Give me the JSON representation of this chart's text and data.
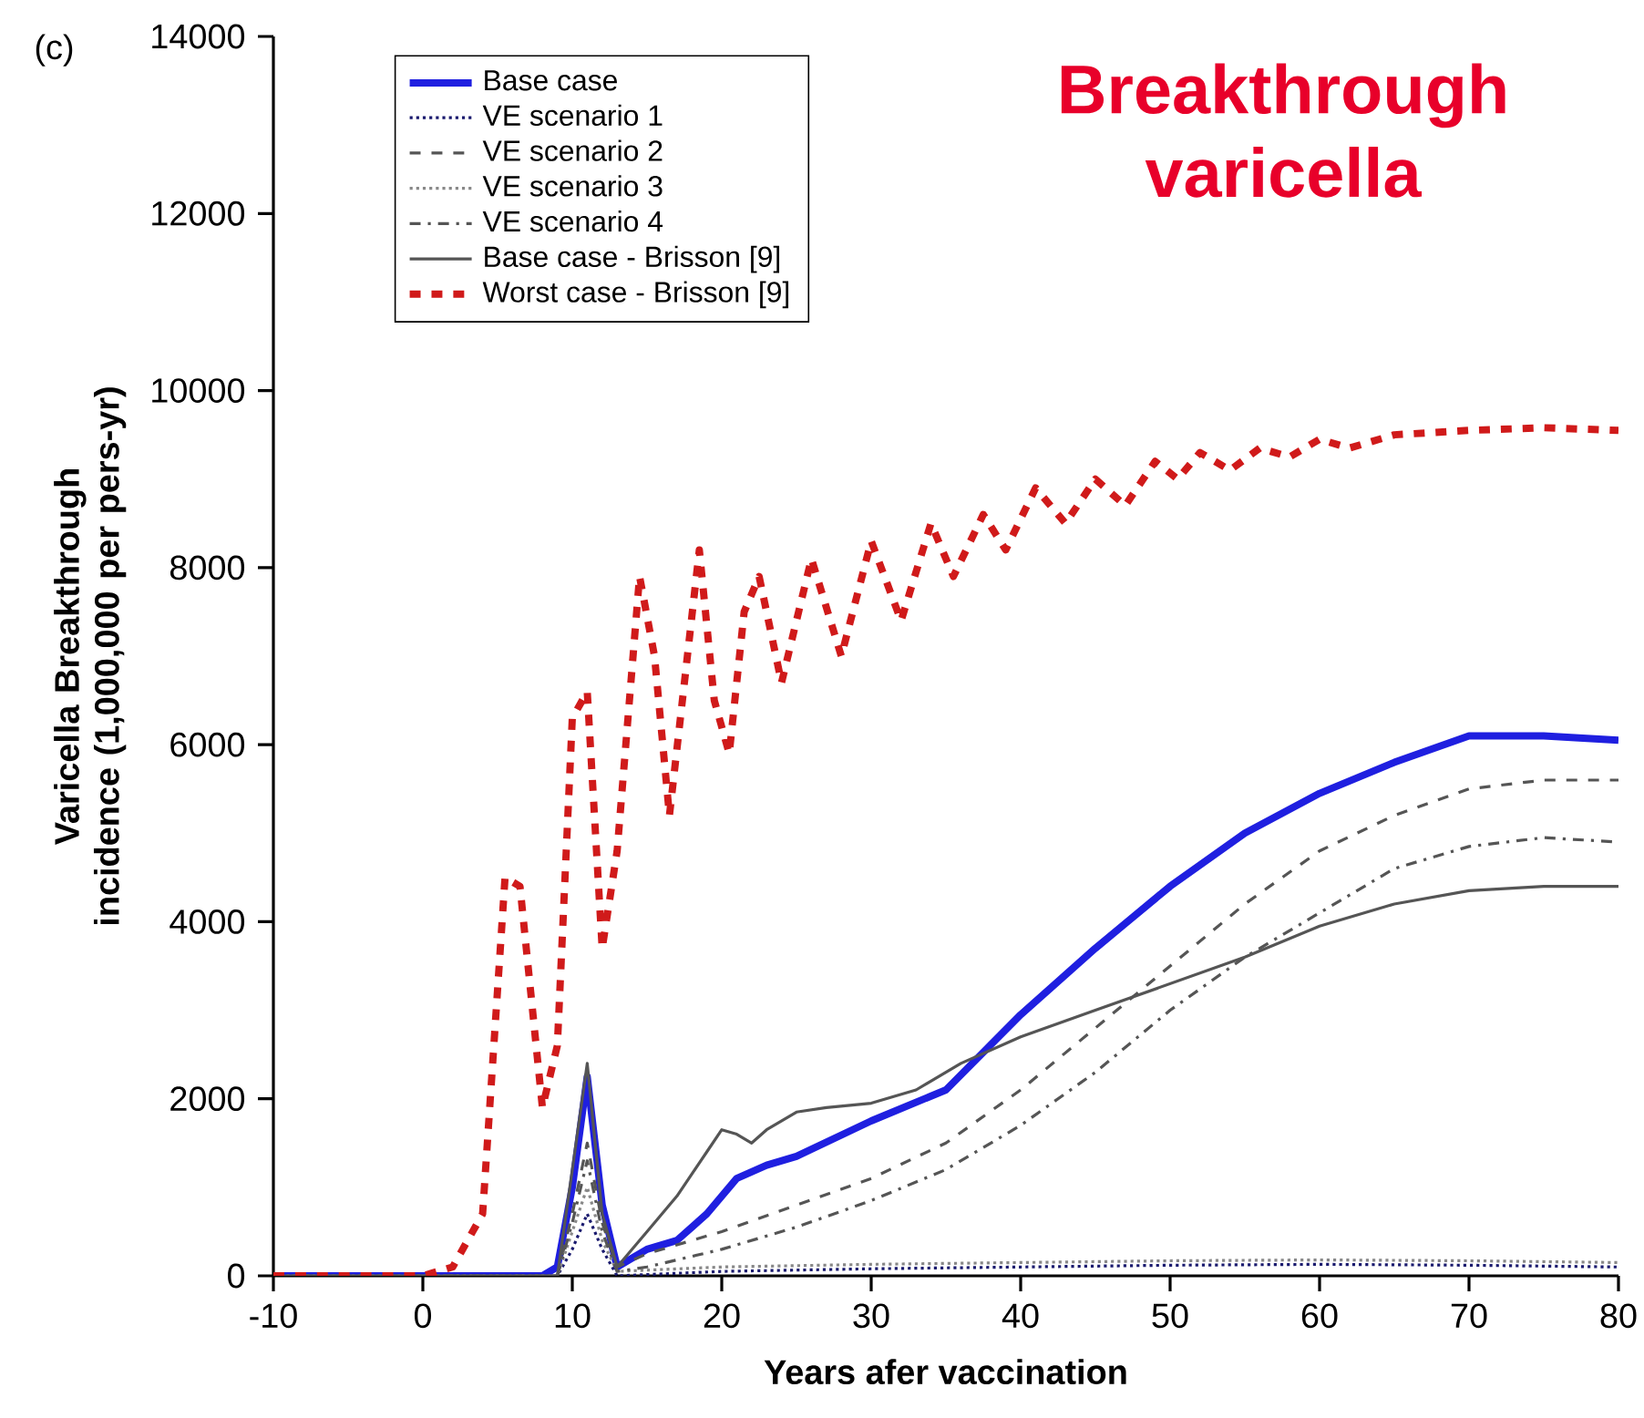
{
  "chart_data": {
    "type": "line",
    "xlabel": "Years afer vaccination",
    "ylabel": "Varicella Breakthrough incidence (1,000,000 per pers-yr)",
    "annotations": [
      "(c)",
      "Breakthrough varicella"
    ],
    "xlim": [
      -10,
      80
    ],
    "xticks": [
      -10,
      0,
      10,
      20,
      30,
      40,
      50,
      60,
      70,
      80
    ],
    "ylim": [
      0,
      14000
    ],
    "yticks": [
      0,
      2000,
      4000,
      6000,
      8000,
      10000,
      12000,
      14000
    ],
    "legend": "top left",
    "grid": false,
    "series": [
      {
        "name": "Base case",
        "color": "#1f1fe0",
        "line_style": "solid",
        "x": [
          -10,
          0,
          8,
          9,
          10,
          11,
          12,
          13,
          15,
          17,
          19,
          21,
          23,
          25,
          30,
          35,
          40,
          45,
          50,
          55,
          60,
          65,
          70,
          75,
          80
        ],
        "values": [
          0,
          0,
          0,
          100,
          1000,
          2250,
          800,
          100,
          300,
          400,
          700,
          1100,
          1250,
          1350,
          1750,
          2100,
          2950,
          3700,
          4400,
          5000,
          5450,
          5800,
          6100,
          6100,
          6050
        ]
      },
      {
        "name": "VE scenario 1",
        "color": "#1a1a6e",
        "line_style": "dotted",
        "x": [
          -10,
          0,
          9,
          10,
          11,
          12,
          13,
          20,
          30,
          40,
          50,
          60,
          70,
          80
        ],
        "values": [
          0,
          0,
          0,
          300,
          700,
          300,
          0,
          50,
          80,
          100,
          120,
          130,
          120,
          100
        ]
      },
      {
        "name": "VE scenario 2",
        "color": "#555555",
        "line_style": "dashed",
        "x": [
          -10,
          0,
          9,
          10,
          11,
          12,
          13,
          15,
          20,
          25,
          30,
          35,
          40,
          45,
          50,
          55,
          60,
          65,
          70,
          75,
          80
        ],
        "values": [
          0,
          0,
          0,
          700,
          1500,
          600,
          100,
          250,
          500,
          800,
          1100,
          1500,
          2100,
          2800,
          3500,
          4200,
          4800,
          5200,
          5500,
          5600,
          5600
        ]
      },
      {
        "name": "VE scenario 3",
        "color": "#888888",
        "line_style": "dotted",
        "x": [
          -10,
          0,
          9,
          10,
          11,
          12,
          13,
          20,
          30,
          40,
          50,
          60,
          70,
          80
        ],
        "values": [
          0,
          0,
          0,
          500,
          1000,
          400,
          50,
          100,
          130,
          150,
          170,
          180,
          170,
          150
        ]
      },
      {
        "name": "VE scenario 4",
        "color": "#555555",
        "line_style": "dashdot",
        "x": [
          -10,
          0,
          9,
          10,
          11,
          12,
          13,
          15,
          20,
          25,
          30,
          35,
          40,
          45,
          50,
          55,
          60,
          65,
          70,
          75,
          80
        ],
        "values": [
          0,
          0,
          0,
          600,
          1300,
          500,
          50,
          100,
          300,
          550,
          850,
          1200,
          1700,
          2300,
          3000,
          3600,
          4100,
          4600,
          4850,
          4950,
          4900
        ]
      },
      {
        "name": "Base case - Brisson [9]",
        "color": "#555555",
        "line_style": "solid",
        "x": [
          -10,
          0,
          9,
          10,
          11,
          12,
          13,
          15,
          17,
          19,
          20,
          21,
          22,
          23,
          25,
          27,
          30,
          33,
          36,
          40,
          45,
          50,
          55,
          60,
          65,
          70,
          75,
          80
        ],
        "values": [
          0,
          0,
          0,
          1200,
          2400,
          700,
          100,
          500,
          900,
          1400,
          1650,
          1600,
          1500,
          1650,
          1850,
          1900,
          1950,
          2100,
          2400,
          2700,
          3000,
          3300,
          3600,
          3950,
          4200,
          4350,
          4400,
          4400
        ]
      },
      {
        "name": "Worst case - Brisson [9]",
        "color": "#d01a1a",
        "line_style": "dashed",
        "x": [
          -10,
          0,
          2,
          4,
          5.5,
          6.5,
          8,
          9,
          10,
          11,
          12,
          13,
          14.5,
          15.5,
          16.5,
          18.5,
          19.5,
          20.5,
          21.5,
          22.5,
          24,
          26,
          28,
          30,
          32,
          34,
          35.5,
          37.5,
          39,
          41,
          43,
          45,
          47,
          49,
          50.5,
          52,
          54,
          56,
          58,
          60,
          62,
          65,
          70,
          75,
          80
        ],
        "values": [
          0,
          0,
          100,
          700,
          4500,
          4400,
          1900,
          2600,
          6300,
          6600,
          3700,
          4800,
          7900,
          7000,
          5200,
          8200,
          6500,
          5900,
          7500,
          7900,
          6700,
          8100,
          7000,
          8300,
          7400,
          8500,
          7900,
          8600,
          8200,
          8900,
          8500,
          9000,
          8700,
          9200,
          9000,
          9300,
          9100,
          9350,
          9250,
          9450,
          9350,
          9500,
          9550,
          9580,
          9550
        ]
      }
    ]
  }
}
